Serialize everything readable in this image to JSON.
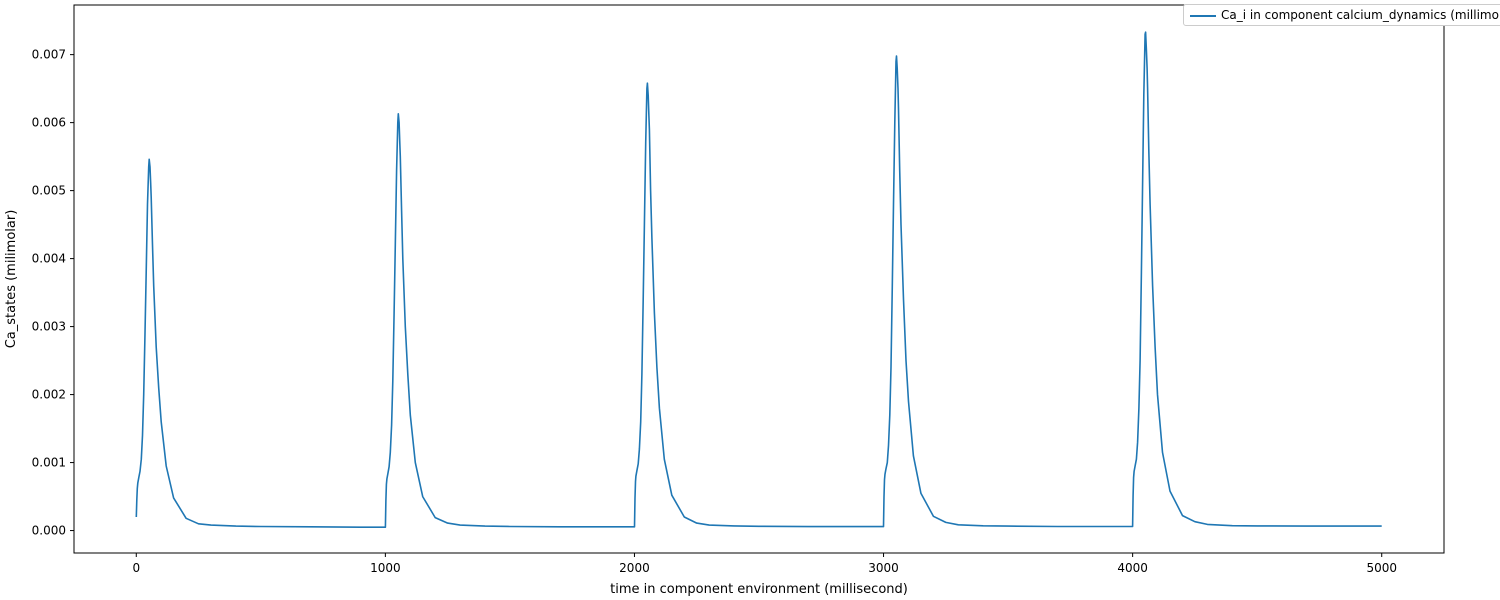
{
  "chart_data": {
    "type": "line",
    "title": "",
    "xlabel": "time in component environment (millisecond)",
    "ylabel": "Ca_states (milimolar)",
    "xlim": [
      -250,
      5250
    ],
    "ylim": [
      -0.00033,
      0.00773
    ],
    "xticks": [
      0,
      1000,
      2000,
      3000,
      4000,
      5000
    ],
    "xtick_labels": [
      "0",
      "1000",
      "2000",
      "3000",
      "4000",
      "5000"
    ],
    "yticks": [
      0.0,
      0.001,
      0.002,
      0.003,
      0.004,
      0.005,
      0.006,
      0.007
    ],
    "ytick_labels": [
      "0.000",
      "0.001",
      "0.002",
      "0.003",
      "0.004",
      "0.005",
      "0.006",
      "0.007"
    ],
    "grid": false,
    "legend_position": "top-right",
    "series": [
      {
        "name": "Ca_i in component calcium_dynamics (millimolar)",
        "color": "#1f77b4",
        "x": [
          0,
          2,
          4,
          6,
          10,
          15,
          20,
          25,
          30,
          35,
          40,
          45,
          50,
          52,
          55,
          58,
          60,
          65,
          70,
          80,
          90,
          100,
          120,
          150,
          200,
          250,
          300,
          400,
          500,
          700,
          900,
          1000,
          1000,
          1002,
          1004,
          1006,
          1010,
          1015,
          1020,
          1025,
          1030,
          1035,
          1040,
          1045,
          1050,
          1052,
          1055,
          1058,
          1060,
          1065,
          1070,
          1080,
          1090,
          1100,
          1120,
          1150,
          1200,
          1250,
          1300,
          1400,
          1500,
          1700,
          1900,
          2000,
          2000,
          2002,
          2004,
          2006,
          2010,
          2015,
          2020,
          2025,
          2030,
          2035,
          2040,
          2045,
          2050,
          2052,
          2055,
          2058,
          2060,
          2065,
          2070,
          2080,
          2090,
          2100,
          2120,
          2150,
          2200,
          2250,
          2300,
          2400,
          2500,
          2700,
          2900,
          3000,
          3000,
          3002,
          3004,
          3006,
          3010,
          3015,
          3020,
          3025,
          3030,
          3035,
          3040,
          3045,
          3050,
          3052,
          3055,
          3058,
          3060,
          3065,
          3070,
          3080,
          3090,
          3100,
          3120,
          3150,
          3200,
          3250,
          3300,
          3400,
          3500,
          3700,
          3900,
          4000,
          4000,
          4002,
          4004,
          4006,
          4010,
          4015,
          4020,
          4025,
          4030,
          4035,
          4040,
          4045,
          4050,
          4052,
          4055,
          4058,
          4060,
          4065,
          4070,
          4080,
          4090,
          4100,
          4120,
          4150,
          4200,
          4250,
          4300,
          4400,
          4500,
          4700,
          4900,
          5000
        ],
        "y": [
          0.0002,
          0.00045,
          0.00062,
          0.0007,
          0.00078,
          0.00087,
          0.00105,
          0.0014,
          0.002,
          0.0029,
          0.0038,
          0.0048,
          0.00535,
          0.00546,
          0.00535,
          0.0051,
          0.0049,
          0.0042,
          0.0036,
          0.0027,
          0.0021,
          0.0016,
          0.00095,
          0.00048,
          0.00018,
          0.0001,
          8e-05,
          6.5e-05,
          6e-05,
          5.5e-05,
          5e-05,
          5e-05,
          5e-05,
          0.00045,
          0.00068,
          0.00076,
          0.00084,
          0.00094,
          0.00115,
          0.00155,
          0.0022,
          0.0032,
          0.0042,
          0.0053,
          0.006,
          0.00613,
          0.006,
          0.0057,
          0.0055,
          0.0047,
          0.004,
          0.003,
          0.0023,
          0.0017,
          0.001,
          0.0005,
          0.00019,
          0.00011,
          8e-05,
          6.5e-05,
          6e-05,
          5.5e-05,
          5.5e-05,
          5.5e-05,
          5.5e-05,
          0.00048,
          0.00072,
          0.0008,
          0.00088,
          0.00098,
          0.0012,
          0.0016,
          0.0023,
          0.0034,
          0.0045,
          0.0057,
          0.0065,
          0.00658,
          0.0064,
          0.0061,
          0.0059,
          0.005,
          0.0043,
          0.0032,
          0.0024,
          0.0018,
          0.00105,
          0.00052,
          0.0002,
          0.00011,
          8e-05,
          6.8e-05,
          6.2e-05,
          5.8e-05,
          5.8e-05,
          5.8e-05,
          5.8e-05,
          0.0005,
          0.00075,
          0.00083,
          0.00091,
          0.001,
          0.00125,
          0.0017,
          0.0024,
          0.0036,
          0.0048,
          0.006,
          0.0069,
          0.00698,
          0.0068,
          0.0065,
          0.0062,
          0.0053,
          0.0045,
          0.0034,
          0.0025,
          0.0019,
          0.0011,
          0.00055,
          0.00021,
          0.00012,
          8.5e-05,
          7e-05,
          6.5e-05,
          6e-05,
          6e-05,
          6e-05,
          6e-05,
          0.00052,
          0.00078,
          0.00087,
          0.00095,
          0.00105,
          0.0013,
          0.0018,
          0.0025,
          0.0038,
          0.0051,
          0.0064,
          0.0073,
          0.00733,
          0.0071,
          0.0068,
          0.0065,
          0.0056,
          0.0048,
          0.0036,
          0.0027,
          0.002,
          0.00115,
          0.00058,
          0.00022,
          0.00013,
          9e-05,
          7.2e-05,
          6.8e-05,
          6.5e-05,
          6.5e-05,
          6.5e-05
        ]
      }
    ]
  }
}
